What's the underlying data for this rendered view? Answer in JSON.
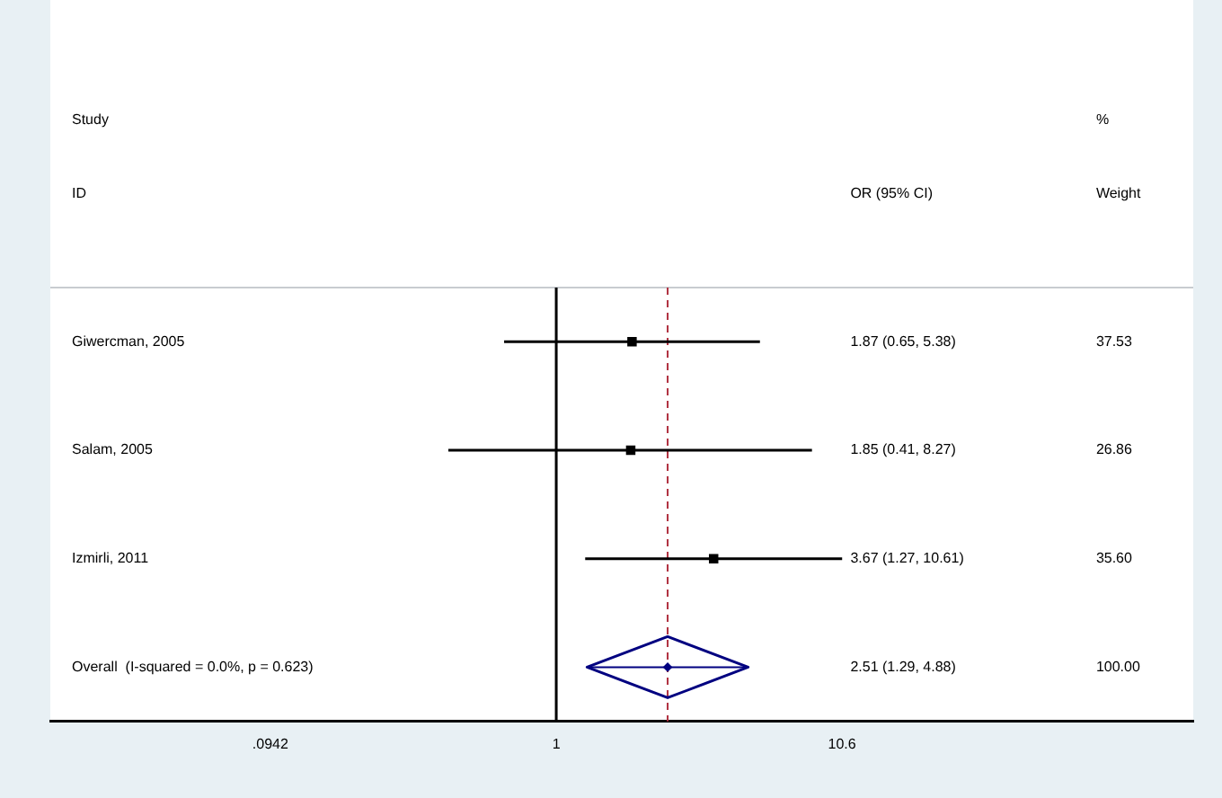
{
  "chart_data": {
    "type": "scatter",
    "orientation": "horizontal",
    "categories": [
      "Giwercman, 2005",
      "Salam, 2005",
      "Izmirli, 2011",
      "Overall  (I-squared = 0.0%, p = 0.623)"
    ],
    "series": [
      {
        "color": "#000000",
        "marker": "square",
        "values": [
          1.87,
          1.85,
          3.67,
          null
        ],
        "errors": [
          [
            0.65,
            5.38
          ],
          [
            0.41,
            8.27
          ],
          [
            1.27,
            10.61
          ],
          null
        ]
      },
      {
        "color": "#000080",
        "marker": "diamond",
        "values": [
          null,
          null,
          null,
          2.51
        ],
        "errors": [
          null,
          null,
          null,
          [
            1.29,
            4.88
          ]
        ]
      }
    ],
    "log": "x",
    "xlim": [
      0.0153,
      193
    ],
    "xticks": [
      {
        "value": 0.0942,
        "label": ".0942"
      },
      1,
      10.6
    ],
    "ref_lines": [
      {
        "axis": "x",
        "value": 1,
        "color": "#000000"
      },
      {
        "axis": "x",
        "value": 2.51,
        "color": "#b03040",
        "line_style": "dashed"
      }
    ],
    "annotations": [
      "Study",
      "ID",
      "OR (95% CI)",
      "%",
      "Weight",
      "1.87 (0.65, 5.38)",
      "37.53",
      "1.85 (0.41, 8.27)",
      "26.86",
      "3.67 (1.27, 10.61)",
      "35.60",
      "2.51 (1.29, 4.88)",
      "100.00"
    ],
    "grid": false,
    "legend": false
  }
}
